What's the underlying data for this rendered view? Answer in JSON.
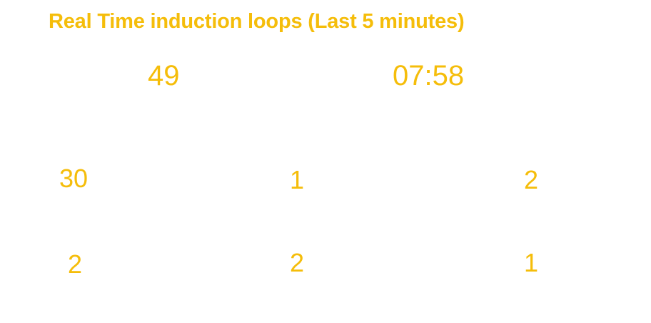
{
  "header": {
    "title": "Real Time induction loops (Last 5 minutes)"
  },
  "summary": {
    "total_count": "49",
    "time": "07:58"
  },
  "grid": {
    "row1": [
      "30",
      "1",
      "2"
    ],
    "row2": [
      "2",
      "2",
      "1"
    ]
  },
  "colors": {
    "accent": "#f5bd0a",
    "background": "#ffffff"
  }
}
